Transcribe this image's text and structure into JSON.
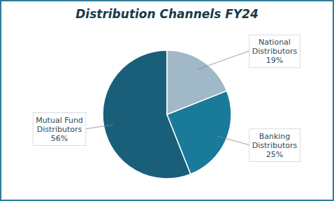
{
  "chart_data": {
    "type": "pie",
    "title": "Distribution Channels FY24",
    "categories": [
      "Mutual Fund\nDistributors",
      "Banking\nDistributors",
      "National\nDistributors"
    ],
    "values": [
      56,
      25,
      19
    ],
    "value_labels": [
      "56%",
      "25%",
      "19%"
    ],
    "colors": [
      "#1a5f7a",
      "#1a7a9a",
      "#a0b8c8"
    ],
    "data_labels": true
  }
}
